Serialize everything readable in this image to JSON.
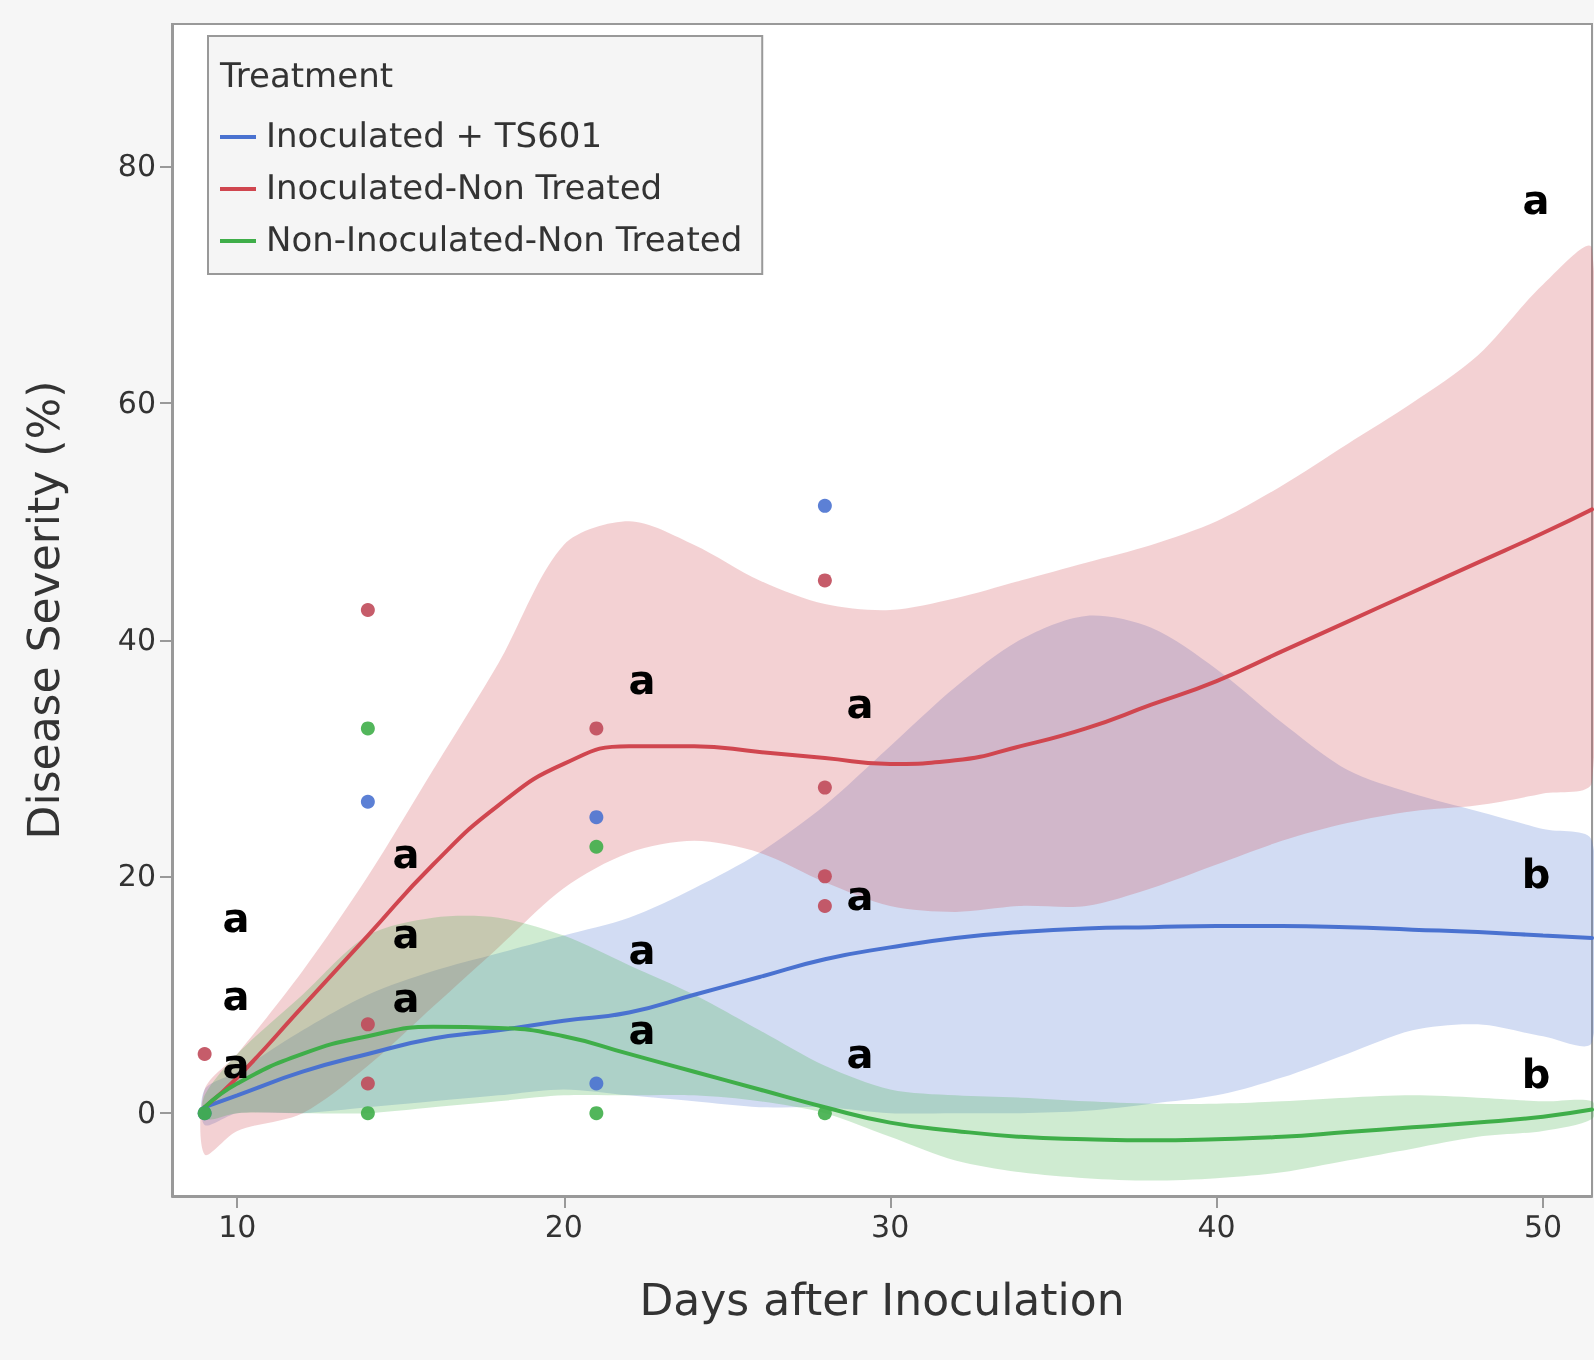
{
  "chart_data": {
    "type": "line",
    "xlabel": "Days after Inoculation",
    "ylabel": "Disease Severity (%)",
    "legend_title": "Treatment",
    "legend": "top left",
    "grid": false,
    "marker": "none",
    "xlim": [
      8,
      51.5
    ],
    "xticks": [
      10,
      20,
      30,
      40,
      50
    ],
    "ylim": [
      -7,
      92
    ],
    "yticks": [
      0,
      20,
      40,
      60,
      80
    ],
    "series": [
      {
        "name": "Inoculated + TS601",
        "color": "#4a72d0",
        "x": [
          9,
          10,
          12,
          14,
          16,
          18,
          20,
          22,
          24,
          26,
          28,
          30,
          32,
          34,
          36,
          38,
          40,
          42,
          44,
          46,
          48,
          50,
          51.5
        ],
        "values": [
          0.5,
          1.5,
          3.5,
          5,
          6.3,
          7,
          7.8,
          8.5,
          10,
          11.5,
          13,
          14,
          14.8,
          15.3,
          15.6,
          15.7,
          15.8,
          15.8,
          15.7,
          15.5,
          15.3,
          15,
          14.8
        ],
        "lower": [
          -1,
          0,
          0,
          0.5,
          1,
          1.5,
          2,
          1.5,
          1,
          0.5,
          0.5,
          0,
          0,
          0,
          0.2,
          0.8,
          1.5,
          3,
          5,
          7,
          7.5,
          6.5,
          6
        ],
        "upper": [
          2,
          3.5,
          7,
          10,
          12,
          13.5,
          15,
          16.5,
          19,
          22,
          26,
          31,
          36,
          40,
          42,
          41,
          37.5,
          33,
          29,
          27,
          25.5,
          24,
          23
        ]
      },
      {
        "name": "Inoculated-Non Treated",
        "color": "#d0464f",
        "x": [
          9,
          10,
          12,
          14,
          16,
          18,
          20,
          22,
          24,
          26,
          28,
          30,
          32,
          34,
          36,
          38,
          40,
          42,
          44,
          46,
          48,
          50,
          51.5
        ],
        "values": [
          0.5,
          3,
          9,
          15,
          21,
          26,
          29.5,
          31,
          31,
          30.5,
          30,
          29.5,
          29.8,
          31,
          32.5,
          34.5,
          36.5,
          39,
          41.5,
          44,
          46.5,
          49,
          51
        ],
        "lower": [
          -3.5,
          -1.5,
          0,
          4,
          9,
          14,
          19,
          22,
          23,
          22,
          19.5,
          17.5,
          17,
          17.5,
          17.5,
          19,
          21,
          23,
          24.5,
          25.5,
          26,
          27,
          28
        ],
        "upper": [
          2,
          5,
          12,
          20,
          29,
          38,
          48,
          50,
          48,
          45,
          43,
          42.5,
          43.5,
          45,
          46.5,
          48,
          50,
          53,
          56.5,
          60,
          64,
          70,
          73
        ]
      },
      {
        "name": "Non-Inoculated-Non Treated",
        "color": "#3fae49",
        "x": [
          9,
          10,
          12,
          14,
          16,
          18,
          20,
          22,
          24,
          26,
          28,
          30,
          32,
          34,
          36,
          38,
          40,
          42,
          44,
          46,
          48,
          50,
          51.5
        ],
        "values": [
          0.5,
          2.5,
          5,
          6.5,
          7.3,
          7.2,
          6.5,
          5,
          3.5,
          2,
          0.5,
          -0.8,
          -1.5,
          -2,
          -2.2,
          -2.3,
          -2.2,
          -2,
          -1.6,
          -1.2,
          -0.8,
          -0.3,
          0.3
        ],
        "lower": [
          -0.5,
          0,
          0,
          0,
          0.5,
          1,
          1.5,
          1.5,
          1.5,
          1,
          0,
          -2,
          -4,
          -5,
          -5.5,
          -5.7,
          -5.5,
          -5,
          -4,
          -3,
          -2,
          -1.5,
          -0.5
        ],
        "upper": [
          1.5,
          5,
          10,
          15,
          16.5,
          16.5,
          15,
          12.5,
          10,
          7,
          4,
          2,
          1.5,
          1.3,
          1,
          0.8,
          0.8,
          1,
          1.3,
          1.5,
          1.3,
          1,
          1
        ]
      },
      {
        "type": "scatter",
        "color": "#4a72d0",
        "marker": "circle",
        "x": [
          9,
          14,
          21,
          21,
          28
        ],
        "values": [
          0,
          26.3,
          25,
          2.5,
          51.3
        ]
      },
      {
        "type": "scatter",
        "color": "#c04a5a",
        "marker": "circle",
        "x": [
          9,
          14,
          14,
          14,
          21,
          28,
          28,
          28,
          28
        ],
        "values": [
          5,
          42.5,
          7.5,
          2.5,
          32.5,
          45,
          27.5,
          20,
          17.5
        ]
      },
      {
        "type": "scatter",
        "color": "#3fae49",
        "marker": "circle",
        "x": [
          9,
          14,
          14,
          21,
          21,
          28
        ],
        "values": [
          0,
          32.5,
          0,
          22.5,
          0,
          0
        ]
      }
    ],
    "annotations": [
      "a",
      "a",
      "a",
      "a",
      "a",
      "a",
      "a",
      "a",
      "a",
      "a",
      "a",
      "a",
      "a",
      "b",
      "b"
    ]
  }
}
